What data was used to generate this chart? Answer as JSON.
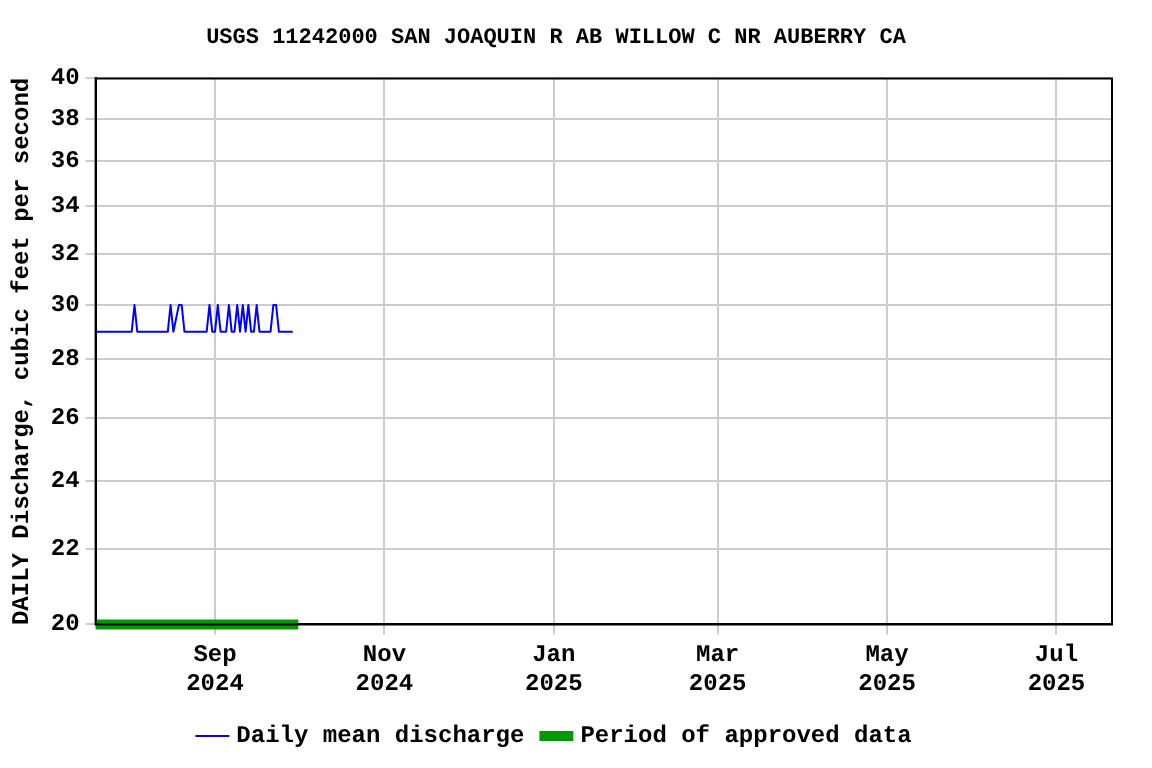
{
  "chart_data": {
    "type": "line",
    "title": "USGS 11242000 SAN JOAQUIN R AB WILLOW C NR AUBERRY CA",
    "ylabel": "DAILY Discharge, cubic feet per second",
    "xlim": [
      "2024-07-20",
      "2025-07-21"
    ],
    "xticks": [
      {
        "value": "2024-09-01",
        "label": "Sep\n2024"
      },
      {
        "value": "2024-11-01",
        "label": "Nov\n2024"
      },
      {
        "value": "2025-01-01",
        "label": "Jan\n2025"
      },
      {
        "value": "2025-03-01",
        "label": "Mar\n2025"
      },
      {
        "value": "2025-05-01",
        "label": "May\n2025"
      },
      {
        "value": "2025-07-01",
        "label": "Jul\n2025"
      }
    ],
    "ylim": [
      20,
      40
    ],
    "yticks": [
      20,
      22,
      24,
      26,
      28,
      30,
      32,
      34,
      36,
      38,
      40
    ],
    "log": "y",
    "grid": true,
    "legend": "bottom",
    "marker": "none",
    "line_style": "solid",
    "series": [
      {
        "name": "Daily mean discharge",
        "color": "#0000ff",
        "x": [
          "2024-07-20",
          "2024-08-02",
          "2024-08-03",
          "2024-08-04",
          "2024-08-15",
          "2024-08-16",
          "2024-08-17",
          "2024-08-19",
          "2024-08-20",
          "2024-08-21",
          "2024-08-29",
          "2024-08-30",
          "2024-08-31",
          "2024-09-01",
          "2024-09-02",
          "2024-09-03",
          "2024-09-05",
          "2024-09-06",
          "2024-09-07",
          "2024-09-08",
          "2024-09-09",
          "2024-09-10",
          "2024-09-11",
          "2024-09-12",
          "2024-09-13",
          "2024-09-14",
          "2024-09-15",
          "2024-09-16",
          "2024-09-17",
          "2024-09-21",
          "2024-09-22",
          "2024-09-23",
          "2024-09-24",
          "2024-09-29"
        ],
        "values": [
          29,
          29,
          30,
          29,
          29,
          30,
          29,
          30,
          30,
          29,
          29,
          30,
          29,
          29,
          30,
          29,
          29,
          30,
          29,
          29,
          30,
          29,
          30,
          29,
          30,
          29,
          29,
          30,
          29,
          29,
          30,
          30,
          29,
          29
        ]
      },
      {
        "name": "Period of approved data",
        "color": "#009900",
        "x": [
          "2024-07-20",
          "2024-10-01"
        ],
        "values": [
          20,
          20
        ]
      }
    ]
  }
}
